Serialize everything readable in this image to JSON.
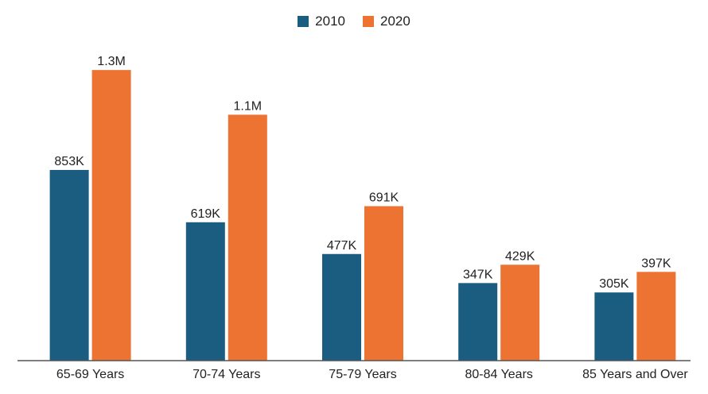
{
  "chart_data": {
    "type": "bar",
    "title": "",
    "xlabel": "",
    "ylabel": "",
    "categories": [
      "65-69 Years",
      "70-74 Years",
      "75-79 Years",
      "80-84 Years",
      "85 Years and Over"
    ],
    "series": [
      {
        "name": "2010",
        "color": "#1a5d80",
        "values": [
          853000,
          619000,
          477000,
          347000,
          305000
        ],
        "labels": [
          "853K",
          "619K",
          "477K",
          "347K",
          "305K"
        ]
      },
      {
        "name": "2020",
        "color": "#ec7332",
        "values": [
          1300000,
          1100000,
          691000,
          429000,
          397000
        ],
        "labels": [
          "1.3M",
          "1.1M",
          "691K",
          "429K",
          "397K"
        ]
      }
    ],
    "ylim": [
      0,
      1400000
    ],
    "grid": false,
    "legend_position": "top-center",
    "axis_color": "#555555",
    "label_color": "#222222"
  }
}
